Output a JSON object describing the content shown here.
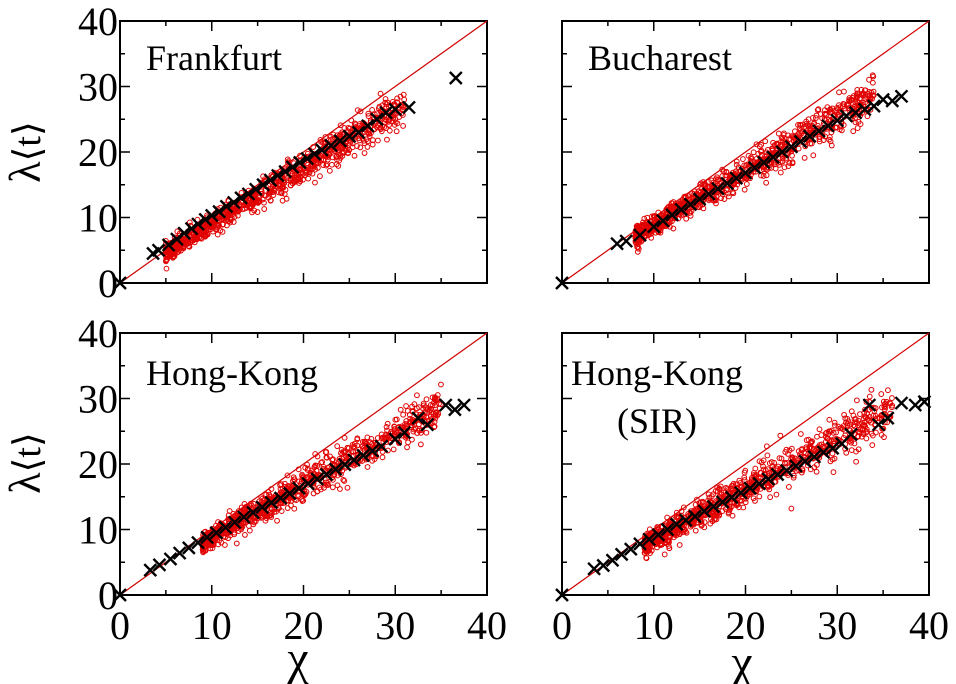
{
  "axis_labels": {
    "x": "χ",
    "y_lambda": "λ",
    "y_t": "⟨t⟩"
  },
  "colors": {
    "scatter": "#e00000",
    "marker_x": "#000000",
    "diagonal": "#d00000",
    "axes": "#000000"
  },
  "chart_data": [
    {
      "type": "scatter",
      "title": "Frankfurt",
      "xlabel": "χ",
      "ylabel": "λ⟨t⟩",
      "xlim": [
        0,
        40
      ],
      "ylim": [
        0,
        40
      ],
      "xticks": [],
      "yticks": [
        "0",
        "10",
        "20",
        "30",
        "40"
      ],
      "diagonal": [
        [
          0,
          0
        ],
        [
          40,
          40
        ]
      ],
      "cloud": {
        "x_range": [
          5,
          31
        ],
        "slope": 0.87,
        "intercept": 0.2,
        "spread": 0.9
      },
      "series": [
        {
          "marker": "x",
          "x": [
            0,
            3.6,
            4.2,
            5.3,
            6.2,
            7.0,
            7.8,
            8.5,
            9.3,
            10.0,
            10.8,
            11.6,
            12.4,
            13.2,
            14.0,
            14.8,
            15.6,
            16.4,
            17.2,
            18.0,
            18.8,
            19.6,
            20.4,
            21.2,
            22.0,
            23.0,
            24.0,
            25.0,
            26.0,
            27.0,
            28.0,
            29.0,
            30.0,
            31.5,
            36.6
          ],
          "y": [
            0,
            4.5,
            5.0,
            5.8,
            6.7,
            7.6,
            8.3,
            9.0,
            9.7,
            10.3,
            10.9,
            11.7,
            12.3,
            13.0,
            13.6,
            14.3,
            15.0,
            15.7,
            16.4,
            17.0,
            17.7,
            18.4,
            19.0,
            19.7,
            20.3,
            21.0,
            21.7,
            22.4,
            23.0,
            24.0,
            25.0,
            26.0,
            26.5,
            26.8,
            31.3
          ]
        }
      ]
    },
    {
      "type": "scatter",
      "title": "Bucharest",
      "xlabel": "χ",
      "ylabel": "λ⟨t⟩",
      "xlim": [
        0,
        40
      ],
      "ylim": [
        0,
        40
      ],
      "xticks": [],
      "yticks": [],
      "diagonal": [
        [
          0,
          0
        ],
        [
          40,
          40
        ]
      ],
      "cloud": {
        "x_range": [
          8,
          34
        ],
        "slope": 0.82,
        "intercept": 0.6,
        "spread": 0.9
      },
      "series": [
        {
          "marker": "x",
          "x": [
            0,
            6.0,
            7.0,
            8.5,
            10.0,
            11.0,
            12.0,
            13.0,
            14.0,
            15.0,
            16.0,
            17.0,
            18.0,
            19.0,
            20.0,
            21.0,
            22.0,
            23.0,
            24.0,
            25.0,
            26.0,
            27.0,
            28.0,
            29.0,
            30.0,
            31.0,
            32.0,
            33.0,
            34.0,
            35.0,
            36.0,
            37.0
          ],
          "y": [
            0,
            6.0,
            6.4,
            7.3,
            8.6,
            9.5,
            10.4,
            11.2,
            12.0,
            12.8,
            13.6,
            14.4,
            15.2,
            16.0,
            16.8,
            17.6,
            18.4,
            19.2,
            20.0,
            20.8,
            21.6,
            22.4,
            23.2,
            24.0,
            24.8,
            25.5,
            26.0,
            26.5,
            27.0,
            28.0,
            27.8,
            28.5
          ]
        }
      ]
    },
    {
      "type": "scatter",
      "title": "Hong-Kong",
      "xlabel": "χ",
      "ylabel": "λ⟨t⟩",
      "xlim": [
        0,
        40
      ],
      "ylim": [
        0,
        40
      ],
      "xticks": [
        "0",
        "10",
        "20",
        "30",
        "40"
      ],
      "yticks": [
        "0",
        "10",
        "20",
        "30",
        "40"
      ],
      "diagonal": [
        [
          0,
          0
        ],
        [
          40,
          40
        ]
      ],
      "cloud": {
        "x_range": [
          9,
          35
        ],
        "slope": 0.8,
        "intercept": 0.8,
        "spread": 0.9
      },
      "series": [
        {
          "marker": "x",
          "x": [
            0,
            3.3,
            4.3,
            5.5,
            6.5,
            7.5,
            8.5,
            9.5,
            10.5,
            11.5,
            12.5,
            13.5,
            14.5,
            15.5,
            16.5,
            17.5,
            18.5,
            19.5,
            20.5,
            21.5,
            22.5,
            23.5,
            24.5,
            25.5,
            26.5,
            27.5,
            28.5,
            30.0,
            31.0,
            32.5,
            33.5,
            35.5,
            36.5,
            37.5
          ],
          "y": [
            0,
            3.8,
            4.6,
            5.5,
            6.4,
            7.2,
            8.0,
            8.8,
            9.5,
            10.3,
            11.1,
            11.9,
            12.6,
            13.4,
            14.1,
            14.8,
            15.5,
            16.3,
            17.0,
            17.7,
            18.4,
            19.2,
            19.9,
            20.6,
            21.3,
            22.0,
            22.7,
            23.8,
            24.8,
            27.0,
            26.0,
            29.0,
            28.3,
            29.0
          ]
        }
      ]
    },
    {
      "type": "scatter",
      "title": "Hong-Kong",
      "subtitle": "(SIR)",
      "xlabel": "χ",
      "ylabel": "λ⟨t⟩",
      "xlim": [
        0,
        40
      ],
      "ylim": [
        0,
        40
      ],
      "xticks": [
        "0",
        "10",
        "20",
        "30",
        "40"
      ],
      "yticks": [],
      "diagonal": [
        [
          0,
          0
        ],
        [
          40,
          40
        ]
      ],
      "cloud": {
        "x_range": [
          9,
          36
        ],
        "slope": 0.78,
        "intercept": 0.5,
        "spread": 1.0
      },
      "outliers": [
        {
          "x": 25.0,
          "y": 13.2
        }
      ],
      "series": [
        {
          "marker": "x",
          "x": [
            0,
            3.5,
            4.5,
            5.5,
            6.5,
            7.5,
            8.5,
            9.5,
            10.5,
            11.5,
            12.5,
            13.5,
            14.5,
            15.5,
            16.5,
            17.5,
            18.5,
            19.5,
            20.5,
            21.5,
            22.5,
            23.5,
            24.5,
            25.5,
            26.5,
            27.5,
            28.5,
            29.5,
            30.5,
            31.5,
            33.5,
            34.5,
            35.5,
            37.0,
            38.5,
            39.5
          ],
          "y": [
            0,
            4.0,
            4.5,
            5.3,
            6.2,
            7.0,
            7.8,
            8.5,
            9.2,
            10.0,
            10.8,
            11.4,
            12.0,
            12.8,
            13.5,
            14.2,
            14.9,
            15.6,
            16.3,
            17.0,
            17.7,
            18.4,
            19.0,
            19.7,
            20.4,
            21.1,
            21.8,
            22.4,
            23.1,
            24.5,
            29.0,
            26.0,
            27.0,
            29.3,
            29.0,
            29.5
          ]
        }
      ]
    }
  ]
}
